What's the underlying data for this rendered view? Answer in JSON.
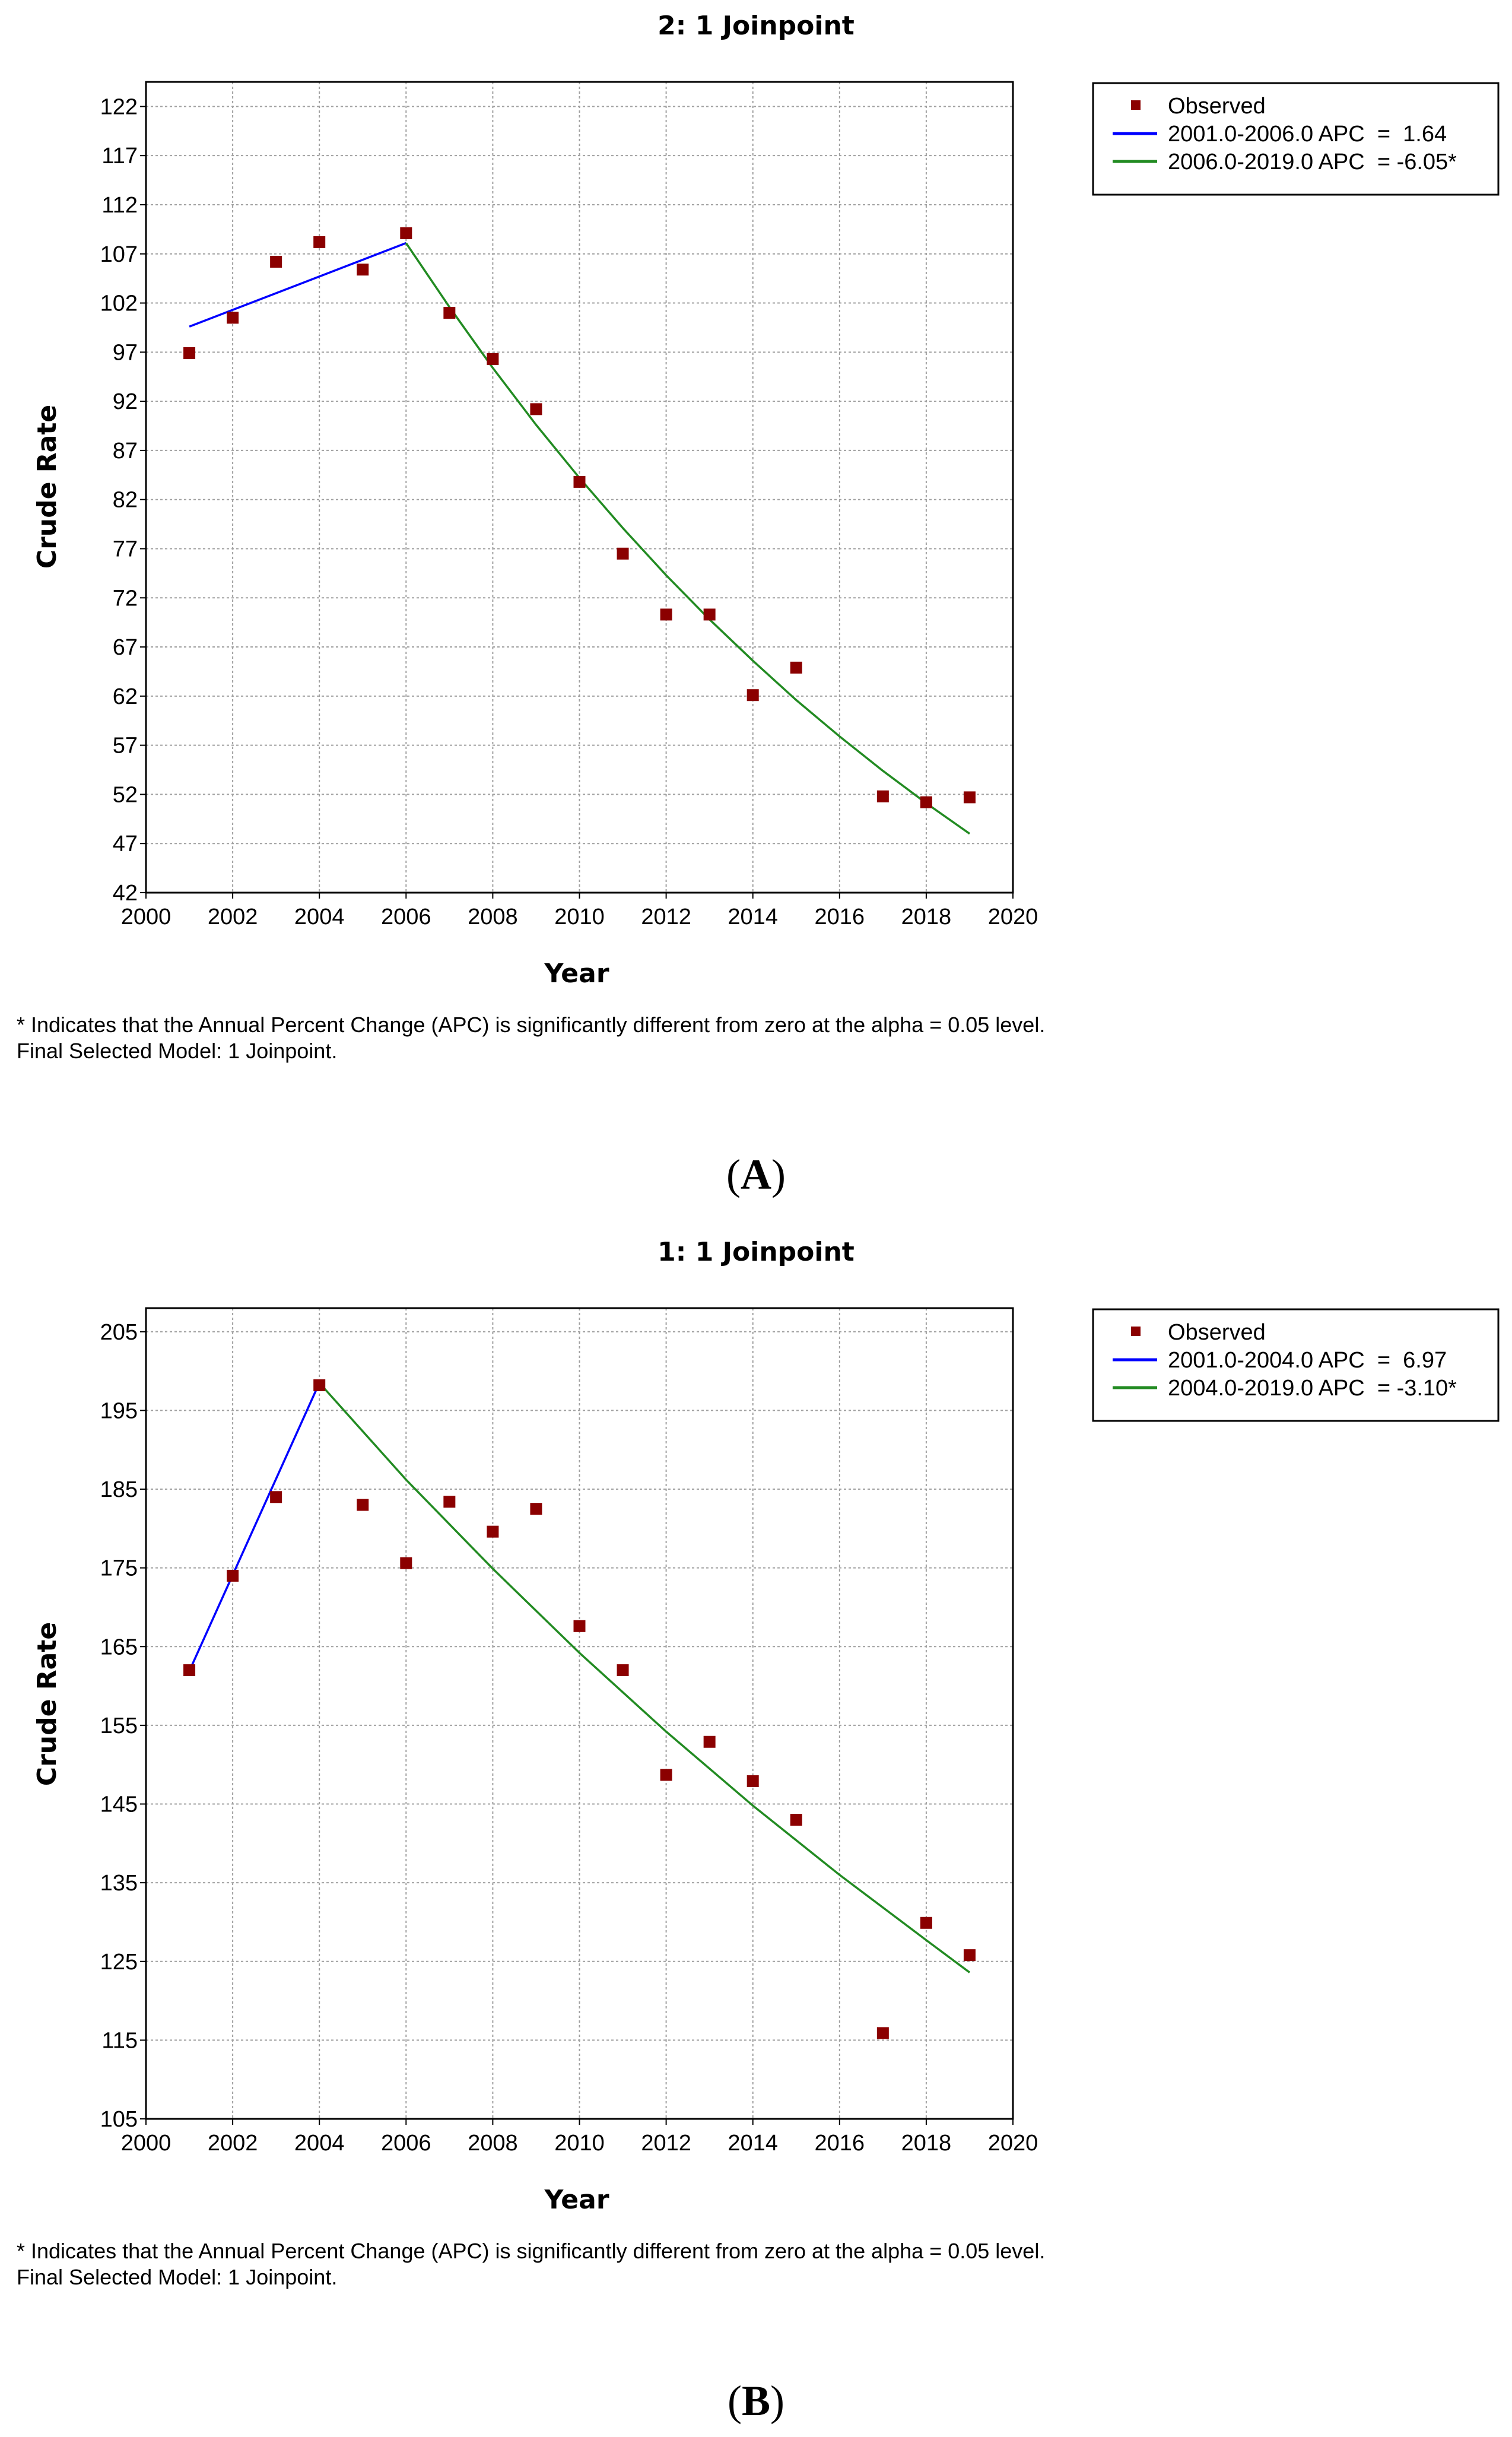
{
  "colors": {
    "observed": "#8b0000",
    "segment1": "#0000ff",
    "segment2": "#228b22",
    "grid": "#a0a0a0",
    "frame": "#000000"
  },
  "chart_data": [
    {
      "type": "scatter+line",
      "panel_label": "A",
      "title": "2: 1 Joinpoint",
      "xlabel": "Year",
      "ylabel": "Crude Rate",
      "xlim": [
        2000,
        2020
      ],
      "ylim": [
        42,
        124.5
      ],
      "x_ticks": [
        2000,
        2002,
        2004,
        2006,
        2008,
        2010,
        2012,
        2014,
        2016,
        2018,
        2020
      ],
      "y_ticks": [
        42,
        47,
        52,
        57,
        62,
        67,
        72,
        77,
        82,
        87,
        92,
        97,
        102,
        107,
        112,
        117,
        122
      ],
      "grid": true,
      "legend": {
        "placement": "top-right, outside plot",
        "entries": [
          "Observed",
          "2001.0-2006.0 APC  =  1.64",
          "2006.0-2019.0 APC  = -6.05*"
        ]
      },
      "observed": {
        "name": "Observed",
        "x": [
          2001,
          2002,
          2003,
          2004,
          2005,
          2006,
          2007,
          2008,
          2009,
          2010,
          2011,
          2012,
          2013,
          2014,
          2015,
          2017,
          2018,
          2019
        ],
        "y": [
          96.9,
          100.5,
          106.2,
          108.2,
          105.4,
          109.1,
          101.0,
          96.3,
          91.2,
          83.8,
          76.5,
          70.3,
          70.3,
          62.1,
          64.9,
          51.8,
          51.2,
          51.7
        ]
      },
      "series": [
        {
          "name": "2001.0-2006.0 APC  =  1.64",
          "color_key": "segment1",
          "x": [
            2001,
            2006
          ],
          "y": [
            99.6,
            108.1
          ]
        },
        {
          "name": "2006.0-2019.0 APC  = -6.05*",
          "color_key": "segment2",
          "x": [
            2006,
            2007,
            2008,
            2009,
            2010,
            2011,
            2012,
            2013,
            2014,
            2015,
            2016,
            2017,
            2018,
            2019
          ],
          "y": [
            108.1,
            101.6,
            95.4,
            89.6,
            84.2,
            79.1,
            74.3,
            69.8,
            65.6,
            61.6,
            57.9,
            54.4,
            51.1,
            48.0
          ]
        }
      ],
      "footnote_lines": [
        "* Indicates that the Annual Percent Change (APC) is significantly different from zero at the alpha = 0.05 level.",
        "Final Selected Model: 1 Joinpoint."
      ]
    },
    {
      "type": "scatter+line",
      "panel_label": "B",
      "title": "1: 1 Joinpoint",
      "xlabel": "Year",
      "ylabel": "Crude Rate",
      "xlim": [
        2000,
        2020
      ],
      "ylim": [
        105,
        208
      ],
      "x_ticks": [
        2000,
        2002,
        2004,
        2006,
        2008,
        2010,
        2012,
        2014,
        2016,
        2018,
        2020
      ],
      "y_ticks": [
        105,
        115,
        125,
        135,
        145,
        155,
        165,
        175,
        185,
        195,
        205
      ],
      "grid": true,
      "legend": {
        "placement": "top-right, outside plot",
        "entries": [
          "Observed",
          "2001.0-2004.0 APC  =  6.97",
          "2004.0-2019.0 APC  = -3.10*"
        ]
      },
      "observed": {
        "name": "Observed",
        "x": [
          2001,
          2002,
          2003,
          2004,
          2005,
          2006,
          2007,
          2008,
          2009,
          2010,
          2011,
          2012,
          2013,
          2014,
          2015,
          2017,
          2018,
          2019
        ],
        "y": [
          162.0,
          174.0,
          184.0,
          198.2,
          183.0,
          175.6,
          183.4,
          179.6,
          182.5,
          167.6,
          162.0,
          148.7,
          152.9,
          147.9,
          143.0,
          115.9,
          129.9,
          125.8
        ]
      },
      "series": [
        {
          "name": "2001.0-2004.0 APC  =  6.97",
          "color_key": "segment1",
          "x": [
            2001,
            2004
          ],
          "y": [
            161.9,
            198.5
          ]
        },
        {
          "name": "2004.0-2019.0 APC  = -3.10*",
          "color_key": "segment2",
          "x": [
            2004,
            2006,
            2008,
            2010,
            2012,
            2014,
            2016,
            2018,
            2019
          ],
          "y": [
            198.5,
            186.2,
            174.9,
            164.2,
            154.2,
            144.8,
            136.0,
            127.7,
            123.6
          ]
        }
      ],
      "footnote_lines": [
        "* Indicates that the Annual Percent Change (APC) is significantly different from zero at the alpha = 0.05 level.",
        "Final Selected Model: 1 Joinpoint."
      ]
    }
  ]
}
